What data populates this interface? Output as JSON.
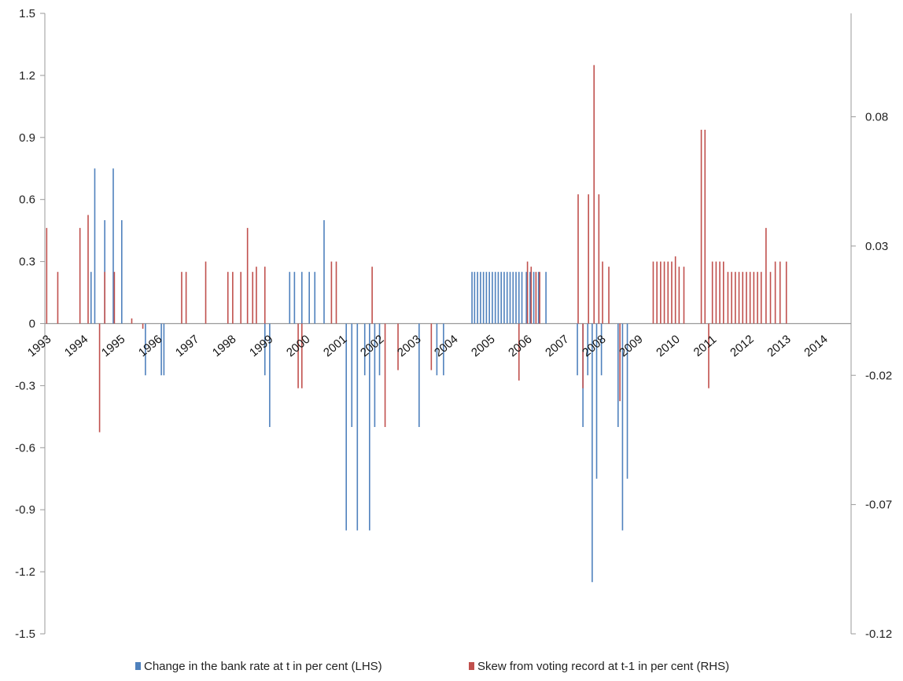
{
  "chart_data": {
    "type": "bar",
    "title": "",
    "xlabel": "",
    "ylabel_left": "",
    "ylabel_right": "",
    "grid": false,
    "legend_position": "bottom",
    "x_range": [
      1993.0,
      2014.8
    ],
    "x_tick_labels": [
      "1993",
      "1994",
      "1995",
      "1996",
      "1997",
      "1998",
      "1999",
      "2000",
      "2001",
      "2002",
      "2003",
      "2004",
      "2005",
      "2006",
      "2007",
      "2008",
      "2009",
      "2010",
      "2011",
      "2012",
      "2013",
      "2014"
    ],
    "left_axis": {
      "min": -1.5,
      "max": 1.5,
      "ticks": [
        1.5,
        1.2,
        0.9,
        0.6,
        0.3,
        0,
        -0.3,
        -0.6,
        -0.9,
        -1.2,
        -1.5
      ],
      "tick_labels": [
        "1.5",
        "1.2",
        "0.9",
        "0.6",
        "0.3",
        "0",
        "-0.3",
        "-0.6",
        "-0.9",
        "-1.2",
        "-1.5"
      ]
    },
    "right_axis": {
      "min": -0.12,
      "max": 0.12,
      "ticks": [
        0.08,
        0.03,
        -0.02,
        -0.07,
        -0.12
      ],
      "tick_labels": [
        "0.08",
        "0.03",
        "-0.02",
        "-0.07",
        "-0.12"
      ]
    },
    "series": [
      {
        "name": "Change in the bank rate at t in per cent (LHS)",
        "axis": "left",
        "color": "#4F81BD",
        "points": [
          [
            1994.25,
            0.25
          ],
          [
            1994.35,
            0.75
          ],
          [
            1994.62,
            0.5
          ],
          [
            1994.85,
            0.75
          ],
          [
            1995.08,
            0.5
          ],
          [
            1995.72,
            -0.25
          ],
          [
            1996.15,
            -0.25
          ],
          [
            1996.22,
            -0.25
          ],
          [
            1998.95,
            -0.25
          ],
          [
            1999.08,
            -0.5
          ],
          [
            1999.62,
            0.25
          ],
          [
            1999.75,
            0.25
          ],
          [
            1999.95,
            0.25
          ],
          [
            2000.15,
            0.25
          ],
          [
            2000.3,
            0.25
          ],
          [
            2000.55,
            0.5
          ],
          [
            2001.15,
            -1.0
          ],
          [
            2001.3,
            -0.5
          ],
          [
            2001.45,
            -1.0
          ],
          [
            2001.65,
            -0.25
          ],
          [
            2001.78,
            -1.0
          ],
          [
            2001.92,
            -0.5
          ],
          [
            2002.05,
            -0.25
          ],
          [
            2003.12,
            -0.5
          ],
          [
            2003.6,
            -0.25
          ],
          [
            2003.78,
            -0.25
          ],
          [
            2004.55,
            0.25
          ],
          [
            2004.62,
            0.25
          ],
          [
            2004.7,
            0.25
          ],
          [
            2004.78,
            0.25
          ],
          [
            2004.86,
            0.25
          ],
          [
            2004.94,
            0.25
          ],
          [
            2005.02,
            0.25
          ],
          [
            2005.1,
            0.25
          ],
          [
            2005.18,
            0.25
          ],
          [
            2005.26,
            0.25
          ],
          [
            2005.34,
            0.25
          ],
          [
            2005.42,
            0.25
          ],
          [
            2005.5,
            0.25
          ],
          [
            2005.58,
            0.25
          ],
          [
            2005.66,
            0.25
          ],
          [
            2005.74,
            0.25
          ],
          [
            2005.82,
            0.25
          ],
          [
            2005.9,
            0.25
          ],
          [
            2006.02,
            0.25
          ],
          [
            2006.12,
            0.25
          ],
          [
            2006.22,
            0.25
          ],
          [
            2006.35,
            0.25
          ],
          [
            2006.55,
            0.25
          ],
          [
            2007.4,
            -0.25
          ],
          [
            2007.55,
            -0.5
          ],
          [
            2007.68,
            -0.25
          ],
          [
            2007.8,
            -1.25
          ],
          [
            2007.92,
            -0.75
          ],
          [
            2008.05,
            -0.25
          ],
          [
            2008.5,
            -0.5
          ],
          [
            2008.62,
            -1.0
          ],
          [
            2008.75,
            -0.75
          ]
        ]
      },
      {
        "name": "Skew from voting record at t-1 in per cent (RHS)",
        "axis": "right",
        "color": "#C0504D",
        "points": [
          [
            1993.05,
            0.037
          ],
          [
            1993.35,
            0.02
          ],
          [
            1993.95,
            0.037
          ],
          [
            1994.17,
            0.042
          ],
          [
            1994.48,
            -0.042
          ],
          [
            1994.62,
            0.02
          ],
          [
            1994.88,
            0.02
          ],
          [
            1995.35,
            0.002
          ],
          [
            1995.65,
            -0.002
          ],
          [
            1996.7,
            0.02
          ],
          [
            1996.82,
            0.02
          ],
          [
            1997.35,
            0.024
          ],
          [
            1997.95,
            0.02
          ],
          [
            1998.08,
            0.02
          ],
          [
            1998.3,
            0.02
          ],
          [
            1998.48,
            0.037
          ],
          [
            1998.62,
            0.02
          ],
          [
            1998.72,
            0.022
          ],
          [
            1998.95,
            0.022
          ],
          [
            1999.85,
            -0.025
          ],
          [
            1999.95,
            -0.025
          ],
          [
            2000.75,
            0.024
          ],
          [
            2000.88,
            0.024
          ],
          [
            2001.85,
            0.022
          ],
          [
            2002.2,
            -0.04
          ],
          [
            2002.55,
            -0.018
          ],
          [
            2003.45,
            -0.018
          ],
          [
            2005.82,
            -0.022
          ],
          [
            2006.05,
            0.024
          ],
          [
            2006.15,
            0.022
          ],
          [
            2006.28,
            0.02
          ],
          [
            2006.38,
            0.02
          ],
          [
            2007.42,
            0.05
          ],
          [
            2007.55,
            -0.025
          ],
          [
            2007.7,
            0.05
          ],
          [
            2007.85,
            0.1
          ],
          [
            2007.98,
            0.05
          ],
          [
            2008.08,
            0.024
          ],
          [
            2008.25,
            0.022
          ],
          [
            2008.55,
            -0.03
          ],
          [
            2009.45,
            0.024
          ],
          [
            2009.55,
            0.024
          ],
          [
            2009.65,
            0.024
          ],
          [
            2009.75,
            0.024
          ],
          [
            2009.85,
            0.024
          ],
          [
            2009.95,
            0.024
          ],
          [
            2010.05,
            0.026
          ],
          [
            2010.15,
            0.022
          ],
          [
            2010.28,
            0.022
          ],
          [
            2010.75,
            0.075
          ],
          [
            2010.85,
            0.075
          ],
          [
            2010.95,
            -0.025
          ],
          [
            2011.05,
            0.024
          ],
          [
            2011.15,
            0.024
          ],
          [
            2011.25,
            0.024
          ],
          [
            2011.35,
            0.024
          ],
          [
            2011.47,
            0.02
          ],
          [
            2011.57,
            0.02
          ],
          [
            2011.67,
            0.02
          ],
          [
            2011.77,
            0.02
          ],
          [
            2011.87,
            0.02
          ],
          [
            2011.97,
            0.02
          ],
          [
            2012.07,
            0.02
          ],
          [
            2012.17,
            0.02
          ],
          [
            2012.27,
            0.02
          ],
          [
            2012.37,
            0.02
          ],
          [
            2012.5,
            0.037
          ],
          [
            2012.62,
            0.02
          ],
          [
            2012.75,
            0.024
          ],
          [
            2012.88,
            0.024
          ],
          [
            2013.05,
            0.024
          ]
        ]
      }
    ]
  }
}
